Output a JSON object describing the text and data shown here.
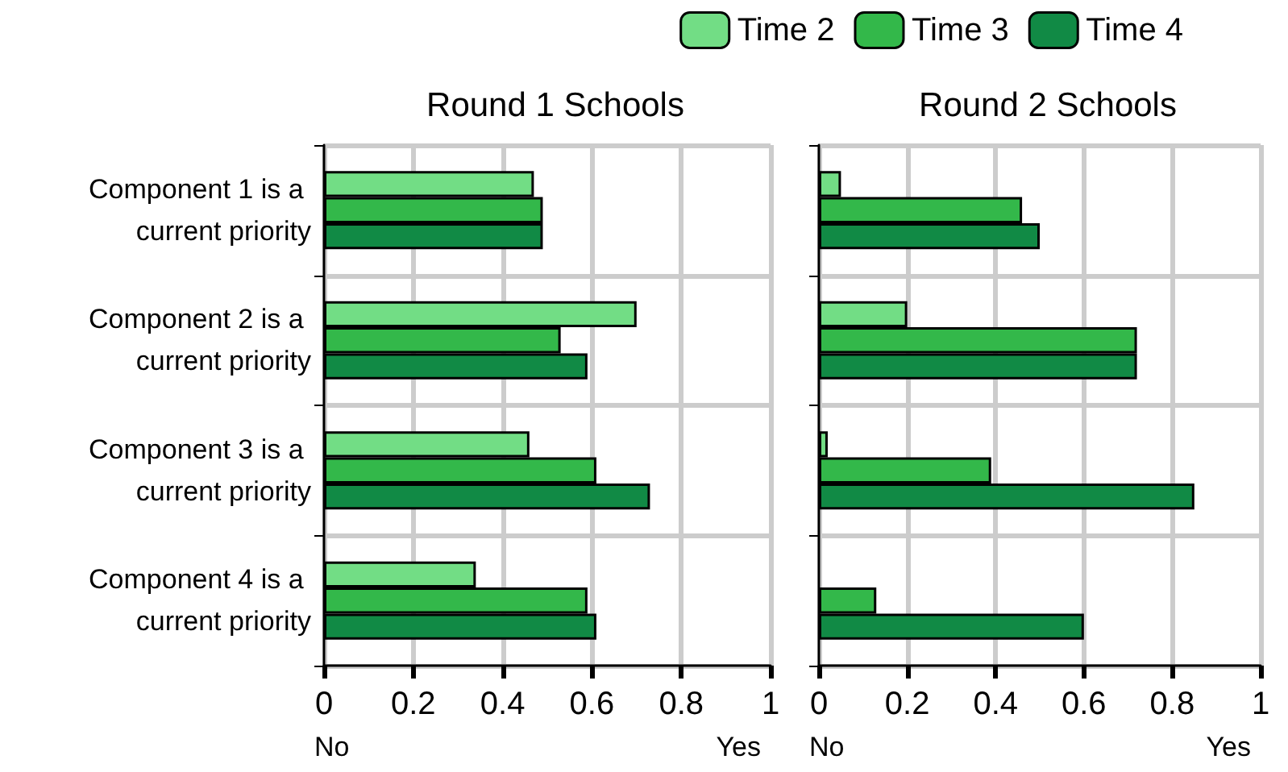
{
  "chart_data": [
    {
      "type": "bar",
      "orientation": "horizontal",
      "title": "Round 1 Schools",
      "categories": [
        "Component 1 is a current priority",
        "Component 2 is a current priority",
        "Component 3 is a current priority",
        "Component 4 is a current priority"
      ],
      "series": [
        {
          "name": "Time 2",
          "color": "#72dd85",
          "values": [
            0.47,
            0.7,
            0.46,
            0.34
          ]
        },
        {
          "name": "Time 3",
          "color": "#33b84a",
          "values": [
            0.49,
            0.53,
            0.61,
            0.59
          ]
        },
        {
          "name": "Time 4",
          "color": "#118a45",
          "values": [
            0.49,
            0.59,
            0.73,
            0.61
          ]
        }
      ],
      "xlim": [
        0,
        1
      ],
      "xticks": [
        0,
        0.2,
        0.4,
        0.6,
        0.8,
        1
      ],
      "grid": true,
      "legend": "top right",
      "annotations": [
        "No",
        "Yes"
      ]
    },
    {
      "type": "bar",
      "orientation": "horizontal",
      "title": "Round 2 Schools",
      "categories": [
        "Component 1 is a current priority",
        "Component 2 is a current priority",
        "Component 3 is a current priority",
        "Component 4 is a current priority"
      ],
      "series": [
        {
          "color": "#72dd85",
          "values": [
            0.05,
            0.2,
            0.02,
            null
          ]
        },
        {
          "color": "#33b84a",
          "values": [
            0.46,
            0.72,
            0.39,
            0.13
          ]
        },
        {
          "color": "#118a45",
          "values": [
            0.5,
            0.72,
            0.85,
            0.6
          ]
        }
      ],
      "xlim": [
        0,
        1
      ],
      "xticks": [
        0,
        0.2,
        0.4,
        0.6,
        0.8,
        1
      ],
      "grid": true,
      "legend": false,
      "tick_labels": "x",
      "annotations": [
        "No",
        "Yes"
      ]
    }
  ]
}
